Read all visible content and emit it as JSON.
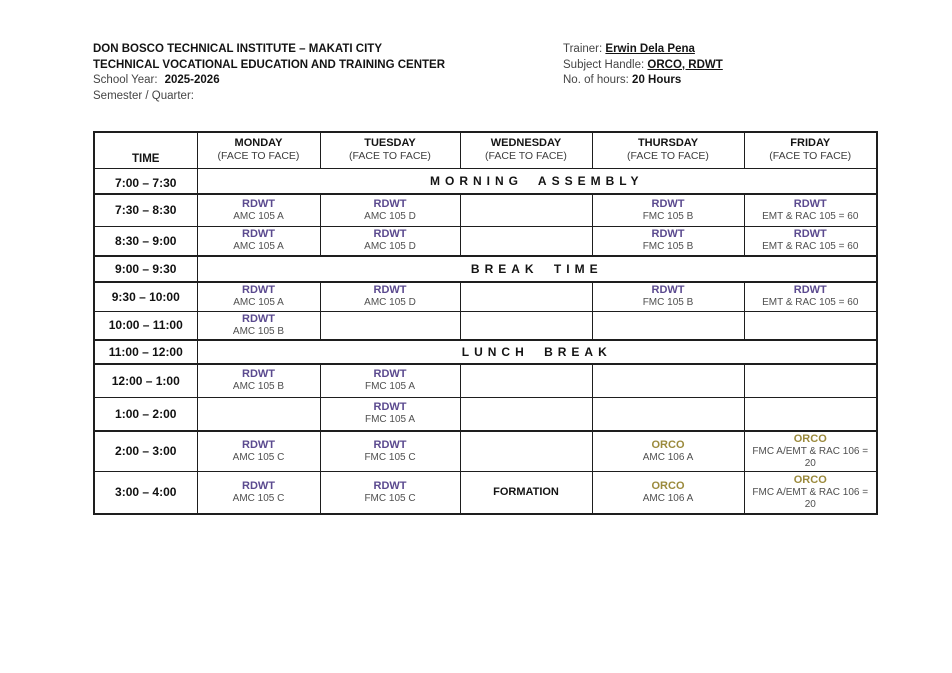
{
  "document": {
    "left": {
      "line1": "DON BOSCO TECHNICAL INSTITUTE – MAKATI CITY",
      "line2": "TECHNICAL VOCATIONAL EDUCATION AND TRAINING CENTER",
      "school_year_label": "School Year:",
      "school_year_value": "2025-2026",
      "semester_label": "Semester / Quarter:"
    },
    "right": {
      "trainer_label": "Trainer:",
      "trainer_value": "Erwin Dela Pena",
      "subject_label": "Subject Handle:",
      "subject_value": "ORCO, RDWT",
      "hours_label": "No. of hours:",
      "hours_value": "20 Hours"
    }
  },
  "colors": {
    "rdwt": "#5b4a8f",
    "orco": "#9b8a3c",
    "plain": "#141414"
  },
  "schedule": {
    "time_header": "TIME",
    "days": [
      {
        "name": "MONDAY",
        "mode": "(FACE TO FACE)"
      },
      {
        "name": "TUESDAY",
        "mode": "(FACE TO FACE)"
      },
      {
        "name": "WEDNESDAY",
        "mode": "(FACE TO FACE)"
      },
      {
        "name": "THURSDAY",
        "mode": "(FACE TO FACE)"
      },
      {
        "name": "FRIDAY",
        "mode": "(FACE TO FACE)"
      }
    ],
    "rows": [
      {
        "time": "7:00 – 7:30",
        "span": "MORNING ASSEMBLY"
      },
      {
        "time": "7:30 – 8:30",
        "cells": [
          {
            "subject": "RDWT",
            "detail": "AMC 105 A",
            "type": "rdwt"
          },
          {
            "subject": "RDWT",
            "detail": "AMC 105 D",
            "type": "rdwt"
          },
          null,
          {
            "subject": "RDWT",
            "detail": "FMC 105 B",
            "type": "rdwt"
          },
          {
            "subject": "RDWT",
            "detail": "EMT & RAC 105 = 60",
            "type": "rdwt"
          }
        ]
      },
      {
        "time": "8:30 – 9:00",
        "cells": [
          {
            "subject": "RDWT",
            "detail": "AMC 105 A",
            "type": "rdwt"
          },
          {
            "subject": "RDWT",
            "detail": "AMC 105 D",
            "type": "rdwt"
          },
          null,
          {
            "subject": "RDWT",
            "detail": "FMC 105 B",
            "type": "rdwt"
          },
          {
            "subject": "RDWT",
            "detail": "EMT & RAC 105 = 60",
            "type": "rdwt"
          }
        ]
      },
      {
        "time": "9:00 – 9:30",
        "span": "BREAK TIME"
      },
      {
        "time": "9:30 – 10:00",
        "cells": [
          {
            "subject": "RDWT",
            "detail": "AMC 105 A",
            "type": "rdwt"
          },
          {
            "subject": "RDWT",
            "detail": "AMC 105 D",
            "type": "rdwt"
          },
          null,
          {
            "subject": "RDWT",
            "detail": "FMC 105 B",
            "type": "rdwt"
          },
          {
            "subject": "RDWT",
            "detail": "EMT & RAC 105 = 60",
            "type": "rdwt"
          }
        ]
      },
      {
        "time": "10:00 – 11:00",
        "cells": [
          {
            "subject": "RDWT",
            "detail": "AMC 105 B",
            "type": "rdwt"
          },
          null,
          null,
          null,
          null
        ]
      },
      {
        "time": "11:00 – 12:00",
        "span": "LUNCH BREAK"
      },
      {
        "time": "12:00 – 1:00",
        "cells": [
          {
            "subject": "RDWT",
            "detail": "AMC 105 B",
            "type": "rdwt"
          },
          {
            "subject": "RDWT",
            "detail": "FMC 105 A",
            "type": "rdwt"
          },
          null,
          null,
          null
        ]
      },
      {
        "time": "1:00 – 2:00",
        "cells": [
          null,
          {
            "subject": "RDWT",
            "detail": "FMC 105 A",
            "type": "rdwt"
          },
          null,
          null,
          null
        ]
      },
      {
        "time": "2:00 – 3:00",
        "cells": [
          {
            "subject": "RDWT",
            "detail": "AMC 105 C",
            "type": "rdwt"
          },
          {
            "subject": "RDWT",
            "detail": "FMC 105 C",
            "type": "rdwt"
          },
          null,
          {
            "subject": "ORCO",
            "detail": "AMC 106 A",
            "type": "orco"
          },
          {
            "subject": "ORCO",
            "detail": "FMC A/EMT & RAC 106 = 20",
            "type": "orco"
          }
        ]
      },
      {
        "time": "3:00 – 4:00",
        "cells": [
          {
            "subject": "RDWT",
            "detail": "AMC 105 C",
            "type": "rdwt"
          },
          {
            "subject": "RDWT",
            "detail": "FMC 105 C",
            "type": "rdwt"
          },
          {
            "subject": "FORMATION",
            "type": "plain"
          },
          {
            "subject": "ORCO",
            "detail": "AMC 106 A",
            "type": "orco"
          },
          {
            "subject": "ORCO",
            "detail": "FMC A/EMT & RAC 106 = 20",
            "type": "orco"
          }
        ]
      }
    ]
  }
}
